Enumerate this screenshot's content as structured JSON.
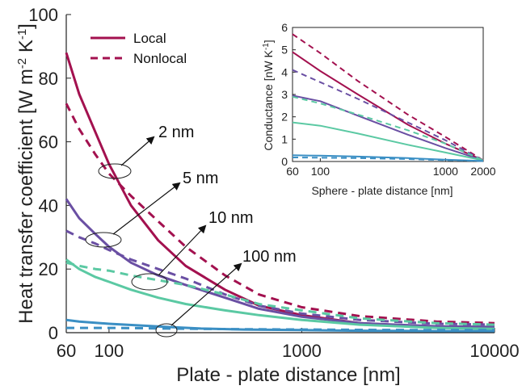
{
  "chart_data": [
    {
      "type": "line",
      "xscale": "log",
      "xlim": [
        60,
        10000
      ],
      "ylim": [
        0,
        100
      ],
      "xticks": [
        "60",
        "100",
        "1000",
        "10000"
      ],
      "yticks": [
        "0",
        "20",
        "40",
        "60",
        "80",
        "100"
      ],
      "xlabel": "Plate - plate distance [nm]",
      "ylabel_main": "Heat transfer coefficient [W m",
      "ylabel_sup1": "-2",
      "ylabel_mid": " K",
      "ylabel_sup2": "-1",
      "ylabel_end": "]",
      "legend": {
        "position": "top-left",
        "local": "Local",
        "nonlocal": "Nonlocal"
      },
      "annotations": [
        "2 nm",
        "5 nm",
        "10 nm",
        "100 nm"
      ],
      "series": [
        {
          "group": "2 nm",
          "style": "solid",
          "color": "#a3114f",
          "x": [
            60,
            70,
            85,
            100,
            130,
            180,
            250,
            400,
            600,
            1000,
            2000,
            5000,
            10000
          ],
          "y": [
            88,
            75,
            63,
            53,
            40,
            29,
            21,
            13.5,
            8.5,
            5.5,
            3,
            1.8,
            1.5
          ]
        },
        {
          "group": "2 nm",
          "style": "dashed",
          "color": "#a3114f",
          "x": [
            60,
            70,
            85,
            100,
            130,
            180,
            250,
            400,
            600,
            1000,
            2000,
            5000,
            10000
          ],
          "y": [
            72,
            64,
            56,
            50,
            43,
            35,
            27,
            18,
            12,
            8,
            5.2,
            3.5,
            3
          ]
        },
        {
          "group": "5 nm",
          "style": "solid",
          "color": "#6a4fa3",
          "x": [
            60,
            70,
            85,
            100,
            130,
            180,
            250,
            400,
            600,
            1000,
            2000,
            5000,
            10000
          ],
          "y": [
            42,
            36,
            31,
            27,
            22,
            18,
            15,
            11,
            7.5,
            5,
            3,
            2,
            1.8
          ]
        },
        {
          "group": "5 nm",
          "style": "dashed",
          "color": "#6a4fa3",
          "x": [
            60,
            70,
            85,
            100,
            130,
            180,
            250,
            400,
            600,
            1000,
            2000,
            5000,
            10000
          ],
          "y": [
            32,
            30,
            28,
            26,
            23,
            20,
            17,
            12,
            8.5,
            6,
            4,
            2.8,
            2.5
          ]
        },
        {
          "group": "10 nm",
          "style": "solid",
          "color": "#5bc9a3",
          "x": [
            60,
            70,
            85,
            100,
            130,
            180,
            250,
            400,
            600,
            1000,
            2000,
            5000,
            10000
          ],
          "y": [
            23,
            20,
            17.5,
            16,
            13.5,
            11,
            9,
            7,
            5.5,
            4,
            2.5,
            1.5,
            1.2
          ]
        },
        {
          "group": "10 nm",
          "style": "dashed",
          "color": "#5bc9a3",
          "x": [
            60,
            70,
            85,
            100,
            130,
            180,
            250,
            400,
            600,
            1000,
            2000,
            5000,
            10000
          ],
          "y": [
            22,
            21,
            20,
            19.5,
            18,
            16.5,
            15,
            12,
            9,
            7,
            4.5,
            3,
            2.5
          ]
        },
        {
          "group": "100 nm",
          "style": "solid",
          "color": "#3b8fc4",
          "x": [
            60,
            70,
            100,
            150,
            200,
            300,
            500,
            1000,
            2000,
            5000,
            10000
          ],
          "y": [
            4,
            3.5,
            2.8,
            2.2,
            1.8,
            1.3,
            1,
            0.8,
            0.6,
            0.5,
            0.5
          ]
        },
        {
          "group": "100 nm",
          "style": "dashed",
          "color": "#3b8fc4",
          "x": [
            60,
            70,
            100,
            150,
            200,
            300,
            500,
            1000,
            2000,
            5000,
            10000
          ],
          "y": [
            1.5,
            1.5,
            1.5,
            1.4,
            1.3,
            1.2,
            1.1,
            1,
            0.9,
            0.8,
            0.8
          ]
        }
      ]
    },
    {
      "type": "line",
      "inset": true,
      "xscale": "log",
      "xlim": [
        60,
        2000
      ],
      "ylim": [
        0,
        6
      ],
      "xticks": [
        "60",
        "100",
        "1000",
        "2000"
      ],
      "yticks": [
        "0",
        "1",
        "2",
        "3",
        "4",
        "5",
        "6"
      ],
      "xlabel": "Sphere - plate distance [nm]",
      "ylabel_main": "Conductance [nW K",
      "ylabel_sup": "-1",
      "ylabel_end": "]",
      "series": [
        {
          "style": "solid",
          "color": "#a3114f",
          "x": [
            60,
            100,
            200,
            500,
            1000,
            2000
          ],
          "y": [
            4.9,
            4.05,
            3.0,
            1.65,
            0.8,
            0.05
          ]
        },
        {
          "style": "dashed",
          "color": "#a3114f",
          "x": [
            60,
            100,
            200,
            500,
            1000,
            2000
          ],
          "y": [
            5.7,
            4.85,
            3.6,
            2.1,
            1.1,
            0.05
          ]
        },
        {
          "style": "solid",
          "color": "#6a4fa3",
          "x": [
            60,
            100,
            200,
            500,
            1000,
            2000
          ],
          "y": [
            2.95,
            2.7,
            2.05,
            1.2,
            0.6,
            0.05
          ]
        },
        {
          "style": "dashed",
          "color": "#6a4fa3",
          "x": [
            60,
            100,
            200,
            500,
            1000,
            2000
          ],
          "y": [
            4.1,
            3.55,
            2.8,
            1.75,
            0.95,
            0.05
          ]
        },
        {
          "style": "solid",
          "color": "#5bc9a3",
          "x": [
            60,
            100,
            200,
            500,
            1000,
            2000
          ],
          "y": [
            1.75,
            1.6,
            1.25,
            0.75,
            0.4,
            0.05
          ]
        },
        {
          "style": "dashed",
          "color": "#5bc9a3",
          "x": [
            60,
            100,
            200,
            500,
            1000,
            2000
          ],
          "y": [
            2.9,
            2.6,
            2.1,
            1.4,
            0.8,
            0.05
          ]
        },
        {
          "style": "solid",
          "color": "#3b8fc4",
          "x": [
            60,
            100,
            200,
            500,
            1000,
            2000
          ],
          "y": [
            0.28,
            0.26,
            0.22,
            0.15,
            0.08,
            0.02
          ]
        },
        {
          "style": "dashed",
          "color": "#3b8fc4",
          "x": [
            60,
            100,
            200,
            500,
            1000,
            2000
          ],
          "y": [
            0.18,
            0.17,
            0.15,
            0.11,
            0.06,
            0.02
          ]
        }
      ]
    }
  ]
}
